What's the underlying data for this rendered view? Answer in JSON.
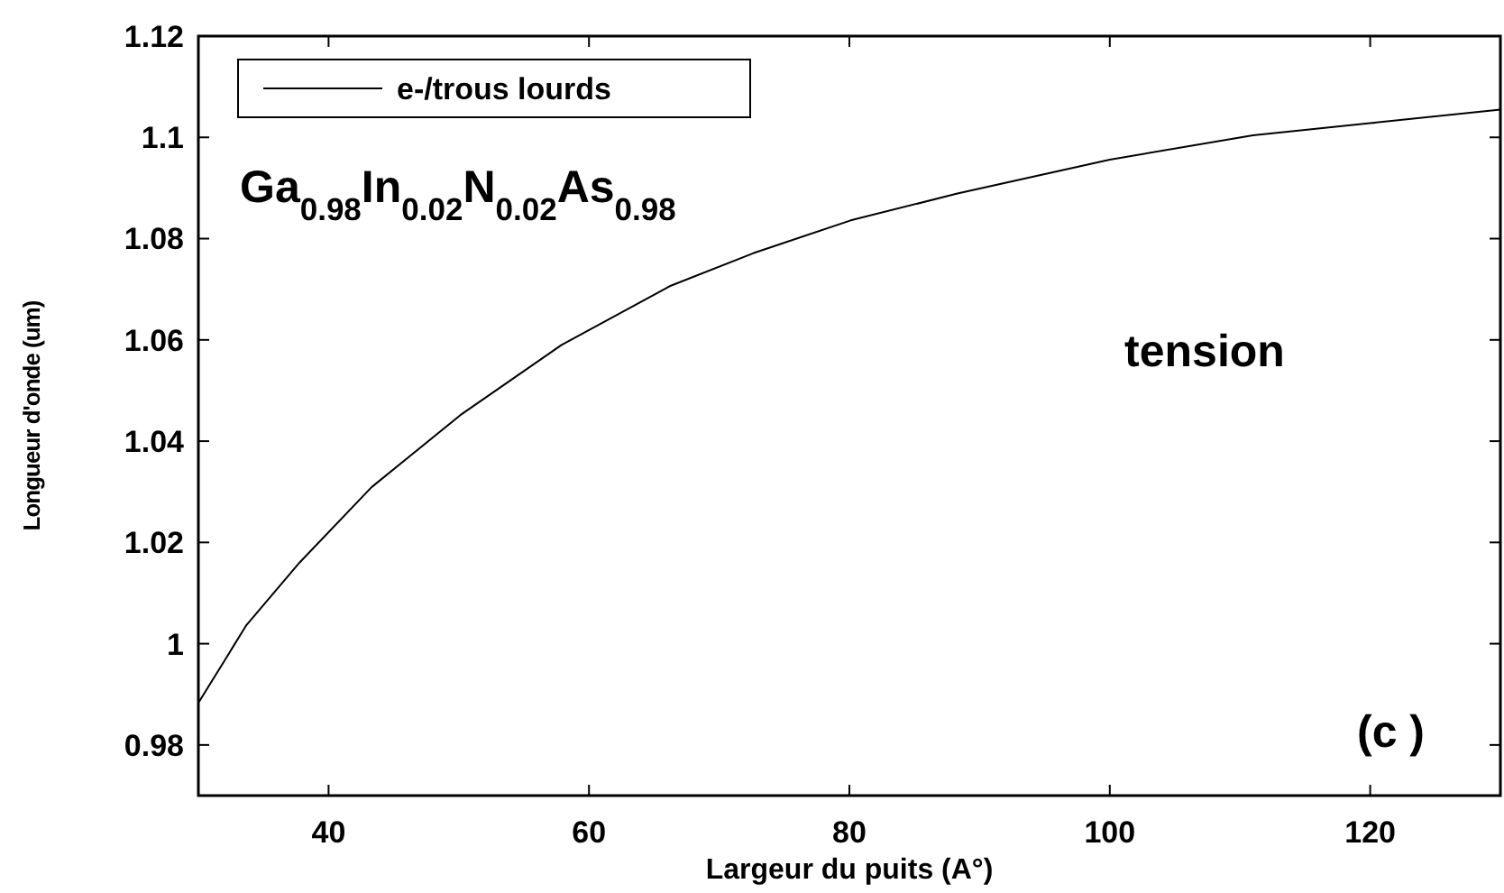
{
  "chart_data": {
    "type": "line",
    "xlabel": "Largeur du puits (A°)",
    "ylabel": "Longueur d'onde (um)",
    "x": [
      30,
      33.7,
      37.8,
      43.3,
      50.1,
      57.9,
      66.2,
      72.6,
      80.1,
      88.3,
      100,
      111,
      120,
      130
    ],
    "series": [
      {
        "name": "e-/trous lourds",
        "color": "#000000",
        "values": [
          0.9883,
          1.0037,
          1.0161,
          1.0309,
          1.0451,
          1.059,
          1.0706,
          1.0771,
          1.0836,
          1.0889,
          1.0956,
          1.1004,
          1.1028,
          1.1055
        ]
      }
    ],
    "xlim": [
      30,
      130
    ],
    "ylim": [
      0.97,
      1.12
    ],
    "xticks": [
      40,
      60,
      80,
      100,
      120
    ],
    "yticks": [
      0.98,
      1,
      1.02,
      1.04,
      1.06,
      1.08,
      1.1,
      1.12
    ],
    "grid": false,
    "legend": "top left",
    "marker": "none",
    "line_style": "solid",
    "annotations": [
      "Ga$_{0.98}$In$_{0.02}$N$_{0.02}$As$_{0.98}$",
      "tension",
      "(c )"
    ]
  }
}
